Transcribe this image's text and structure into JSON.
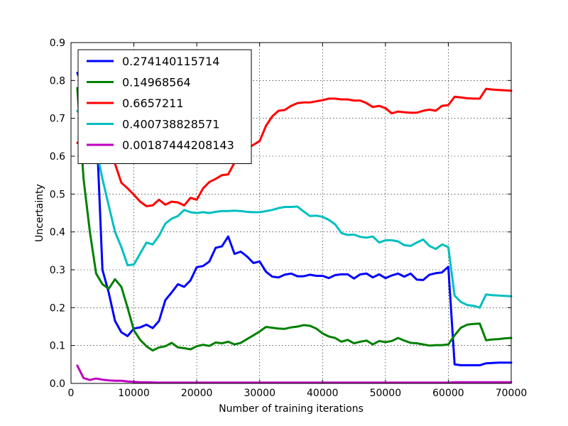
{
  "chart_data": {
    "type": "line",
    "title": "",
    "xlabel": "Number of training iterations",
    "ylabel": "Uncertainty",
    "xlim": [
      0,
      70000
    ],
    "ylim": [
      0.0,
      0.9
    ],
    "grid": true,
    "legend_position": "top-left",
    "x_ticks": [
      0,
      10000,
      20000,
      30000,
      40000,
      50000,
      60000,
      70000
    ],
    "x_tick_labels": [
      "0",
      "10000",
      "20000",
      "30000",
      "40000",
      "50000",
      "60000",
      "70000"
    ],
    "y_ticks": [
      0.0,
      0.1,
      0.2,
      0.3,
      0.4,
      0.5,
      0.6,
      0.7,
      0.8,
      0.9
    ],
    "y_tick_labels": [
      "0.0",
      "0.1",
      "0.2",
      "0.3",
      "0.4",
      "0.5",
      "0.6",
      "0.7",
      "0.8",
      "0.9"
    ],
    "series": [
      {
        "name": "0.274140115714",
        "color": "#0000ff",
        "points": [
          [
            1000,
            0.82
          ],
          [
            2000,
            0.78
          ],
          [
            3000,
            0.74
          ],
          [
            4000,
            0.7
          ],
          [
            5000,
            0.3
          ],
          [
            6000,
            0.24
          ],
          [
            7000,
            0.165
          ],
          [
            8000,
            0.135
          ],
          [
            9000,
            0.125
          ],
          [
            10000,
            0.145
          ],
          [
            11000,
            0.148
          ],
          [
            12000,
            0.155
          ],
          [
            13000,
            0.146
          ],
          [
            14000,
            0.165
          ],
          [
            15000,
            0.22
          ],
          [
            16000,
            0.24
          ],
          [
            17000,
            0.262
          ],
          [
            18000,
            0.255
          ],
          [
            19000,
            0.272
          ],
          [
            20000,
            0.307
          ],
          [
            21000,
            0.31
          ],
          [
            22000,
            0.322
          ],
          [
            23000,
            0.358
          ],
          [
            24000,
            0.362
          ],
          [
            25000,
            0.388
          ],
          [
            26000,
            0.342
          ],
          [
            27000,
            0.348
          ],
          [
            28000,
            0.335
          ],
          [
            29000,
            0.318
          ],
          [
            30000,
            0.322
          ],
          [
            31000,
            0.295
          ],
          [
            32000,
            0.282
          ],
          [
            33000,
            0.28
          ],
          [
            34000,
            0.287
          ],
          [
            35000,
            0.29
          ],
          [
            36000,
            0.283
          ],
          [
            37000,
            0.283
          ],
          [
            38000,
            0.287
          ],
          [
            39000,
            0.284
          ],
          [
            40000,
            0.284
          ],
          [
            41000,
            0.278
          ],
          [
            42000,
            0.286
          ],
          [
            43000,
            0.288
          ],
          [
            44000,
            0.288
          ],
          [
            45000,
            0.277
          ],
          [
            46000,
            0.288
          ],
          [
            47000,
            0.29
          ],
          [
            48000,
            0.28
          ],
          [
            49000,
            0.288
          ],
          [
            50000,
            0.278
          ],
          [
            51000,
            0.285
          ],
          [
            52000,
            0.29
          ],
          [
            53000,
            0.282
          ],
          [
            54000,
            0.29
          ],
          [
            55000,
            0.274
          ],
          [
            56000,
            0.273
          ],
          [
            57000,
            0.287
          ],
          [
            58000,
            0.291
          ],
          [
            59000,
            0.293
          ],
          [
            60000,
            0.308
          ],
          [
            61000,
            0.05
          ],
          [
            62000,
            0.048
          ],
          [
            63000,
            0.048
          ],
          [
            64000,
            0.048
          ],
          [
            65000,
            0.048
          ],
          [
            66000,
            0.053
          ],
          [
            67000,
            0.054
          ],
          [
            68000,
            0.055
          ],
          [
            69000,
            0.055
          ],
          [
            70000,
            0.055
          ]
        ]
      },
      {
        "name": "0.14968564",
        "color": "#008000",
        "points": [
          [
            1000,
            0.78
          ],
          [
            2000,
            0.54
          ],
          [
            3000,
            0.4
          ],
          [
            4000,
            0.29
          ],
          [
            5000,
            0.262
          ],
          [
            6000,
            0.25
          ],
          [
            7000,
            0.275
          ],
          [
            8000,
            0.255
          ],
          [
            9000,
            0.2
          ],
          [
            10000,
            0.14
          ],
          [
            11000,
            0.115
          ],
          [
            12000,
            0.098
          ],
          [
            13000,
            0.087
          ],
          [
            14000,
            0.095
          ],
          [
            15000,
            0.098
          ],
          [
            16000,
            0.107
          ],
          [
            17000,
            0.095
          ],
          [
            18000,
            0.093
          ],
          [
            19000,
            0.09
          ],
          [
            20000,
            0.098
          ],
          [
            21000,
            0.102
          ],
          [
            22000,
            0.099
          ],
          [
            23000,
            0.108
          ],
          [
            24000,
            0.106
          ],
          [
            25000,
            0.11
          ],
          [
            26000,
            0.103
          ],
          [
            27000,
            0.107
          ],
          [
            28000,
            0.117
          ],
          [
            29000,
            0.127
          ],
          [
            30000,
            0.137
          ],
          [
            31000,
            0.149
          ],
          [
            32000,
            0.147
          ],
          [
            33000,
            0.145
          ],
          [
            34000,
            0.144
          ],
          [
            35000,
            0.148
          ],
          [
            36000,
            0.15
          ],
          [
            37000,
            0.154
          ],
          [
            38000,
            0.152
          ],
          [
            39000,
            0.145
          ],
          [
            40000,
            0.132
          ],
          [
            41000,
            0.124
          ],
          [
            42000,
            0.12
          ],
          [
            43000,
            0.11
          ],
          [
            44000,
            0.115
          ],
          [
            45000,
            0.106
          ],
          [
            46000,
            0.11
          ],
          [
            47000,
            0.113
          ],
          [
            48000,
            0.103
          ],
          [
            49000,
            0.112
          ],
          [
            50000,
            0.109
          ],
          [
            51000,
            0.112
          ],
          [
            52000,
            0.12
          ],
          [
            53000,
            0.113
          ],
          [
            54000,
            0.107
          ],
          [
            55000,
            0.106
          ],
          [
            56000,
            0.103
          ],
          [
            57000,
            0.1
          ],
          [
            58000,
            0.101
          ],
          [
            59000,
            0.101
          ],
          [
            60000,
            0.103
          ],
          [
            61000,
            0.127
          ],
          [
            62000,
            0.147
          ],
          [
            63000,
            0.155
          ],
          [
            64000,
            0.157
          ],
          [
            65000,
            0.158
          ],
          [
            66000,
            0.114
          ],
          [
            67000,
            0.116
          ],
          [
            68000,
            0.117
          ],
          [
            69000,
            0.119
          ],
          [
            70000,
            0.12
          ]
        ]
      },
      {
        "name": "0.6657211",
        "color": "#ff0000",
        "points": [
          [
            1000,
            0.635
          ],
          [
            2000,
            0.65
          ],
          [
            3000,
            0.66
          ],
          [
            4000,
            0.665
          ],
          [
            5000,
            0.665
          ],
          [
            6000,
            0.62
          ],
          [
            7000,
            0.58
          ],
          [
            8000,
            0.53
          ],
          [
            9000,
            0.515
          ],
          [
            10000,
            0.498
          ],
          [
            11000,
            0.48
          ],
          [
            12000,
            0.468
          ],
          [
            13000,
            0.47
          ],
          [
            14000,
            0.485
          ],
          [
            15000,
            0.472
          ],
          [
            16000,
            0.48
          ],
          [
            17000,
            0.478
          ],
          [
            18000,
            0.47
          ],
          [
            19000,
            0.49
          ],
          [
            20000,
            0.485
          ],
          [
            21000,
            0.515
          ],
          [
            22000,
            0.532
          ],
          [
            23000,
            0.54
          ],
          [
            24000,
            0.55
          ],
          [
            25000,
            0.552
          ],
          [
            26000,
            0.583
          ],
          [
            27000,
            0.585
          ],
          [
            28000,
            0.62
          ],
          [
            29000,
            0.63
          ],
          [
            30000,
            0.64
          ],
          [
            31000,
            0.68
          ],
          [
            32000,
            0.705
          ],
          [
            33000,
            0.72
          ],
          [
            34000,
            0.722
          ],
          [
            35000,
            0.733
          ],
          [
            36000,
            0.74
          ],
          [
            37000,
            0.742
          ],
          [
            38000,
            0.742
          ],
          [
            39000,
            0.745
          ],
          [
            40000,
            0.748
          ],
          [
            41000,
            0.752
          ],
          [
            42000,
            0.752
          ],
          [
            43000,
            0.75
          ],
          [
            44000,
            0.75
          ],
          [
            45000,
            0.747
          ],
          [
            46000,
            0.747
          ],
          [
            47000,
            0.74
          ],
          [
            48000,
            0.73
          ],
          [
            49000,
            0.733
          ],
          [
            50000,
            0.727
          ],
          [
            51000,
            0.713
          ],
          [
            52000,
            0.718
          ],
          [
            53000,
            0.716
          ],
          [
            54000,
            0.715
          ],
          [
            55000,
            0.715
          ],
          [
            56000,
            0.72
          ],
          [
            57000,
            0.723
          ],
          [
            58000,
            0.72
          ],
          [
            59000,
            0.733
          ],
          [
            60000,
            0.735
          ],
          [
            61000,
            0.757
          ],
          [
            62000,
            0.755
          ],
          [
            63000,
            0.753
          ],
          [
            64000,
            0.752
          ],
          [
            65000,
            0.752
          ],
          [
            66000,
            0.778
          ],
          [
            67000,
            0.776
          ],
          [
            68000,
            0.775
          ],
          [
            69000,
            0.774
          ],
          [
            70000,
            0.773
          ]
        ]
      },
      {
        "name": "0.400738828571",
        "color": "#00bfbf",
        "points": [
          [
            1000,
            0.72
          ],
          [
            2000,
            0.7
          ],
          [
            3000,
            0.68
          ],
          [
            4000,
            0.62
          ],
          [
            5000,
            0.54
          ],
          [
            6000,
            0.47
          ],
          [
            7000,
            0.4
          ],
          [
            8000,
            0.36
          ],
          [
            9000,
            0.312
          ],
          [
            10000,
            0.314
          ],
          [
            11000,
            0.343
          ],
          [
            12000,
            0.372
          ],
          [
            13000,
            0.367
          ],
          [
            14000,
            0.39
          ],
          [
            15000,
            0.422
          ],
          [
            16000,
            0.435
          ],
          [
            17000,
            0.442
          ],
          [
            18000,
            0.458
          ],
          [
            19000,
            0.452
          ],
          [
            20000,
            0.45
          ],
          [
            21000,
            0.452
          ],
          [
            22000,
            0.45
          ],
          [
            23000,
            0.453
          ],
          [
            24000,
            0.455
          ],
          [
            25000,
            0.455
          ],
          [
            26000,
            0.456
          ],
          [
            27000,
            0.455
          ],
          [
            28000,
            0.453
          ],
          [
            29000,
            0.452
          ],
          [
            30000,
            0.452
          ],
          [
            31000,
            0.455
          ],
          [
            32000,
            0.458
          ],
          [
            33000,
            0.463
          ],
          [
            34000,
            0.466
          ],
          [
            35000,
            0.466
          ],
          [
            36000,
            0.467
          ],
          [
            37000,
            0.454
          ],
          [
            38000,
            0.442
          ],
          [
            39000,
            0.443
          ],
          [
            40000,
            0.44
          ],
          [
            41000,
            0.432
          ],
          [
            42000,
            0.42
          ],
          [
            43000,
            0.397
          ],
          [
            44000,
            0.392
          ],
          [
            45000,
            0.393
          ],
          [
            46000,
            0.387
          ],
          [
            47000,
            0.385
          ],
          [
            48000,
            0.388
          ],
          [
            49000,
            0.372
          ],
          [
            50000,
            0.378
          ],
          [
            51000,
            0.378
          ],
          [
            52000,
            0.375
          ],
          [
            53000,
            0.365
          ],
          [
            54000,
            0.363
          ],
          [
            55000,
            0.372
          ],
          [
            56000,
            0.38
          ],
          [
            57000,
            0.363
          ],
          [
            58000,
            0.355
          ],
          [
            59000,
            0.367
          ],
          [
            60000,
            0.36
          ],
          [
            61000,
            0.232
          ],
          [
            62000,
            0.215
          ],
          [
            63000,
            0.207
          ],
          [
            64000,
            0.205
          ],
          [
            65000,
            0.2
          ],
          [
            66000,
            0.235
          ],
          [
            67000,
            0.233
          ],
          [
            68000,
            0.232
          ],
          [
            69000,
            0.231
          ],
          [
            70000,
            0.23
          ]
        ]
      },
      {
        "name": "0.00187444208143",
        "color": "#bf00bf",
        "points": [
          [
            1000,
            0.047
          ],
          [
            2000,
            0.014
          ],
          [
            3000,
            0.009
          ],
          [
            4000,
            0.013
          ],
          [
            5000,
            0.01
          ],
          [
            6000,
            0.008
          ],
          [
            7000,
            0.007
          ],
          [
            8000,
            0.007
          ],
          [
            9000,
            0.005
          ],
          [
            10000,
            0.004
          ],
          [
            11000,
            0.003
          ],
          [
            12000,
            0.003
          ],
          [
            14000,
            0.002
          ],
          [
            16000,
            0.002
          ],
          [
            20000,
            0.002
          ],
          [
            30000,
            0.002
          ],
          [
            40000,
            0.002
          ],
          [
            50000,
            0.002
          ],
          [
            60000,
            0.002
          ],
          [
            61000,
            0.003
          ],
          [
            65000,
            0.003
          ],
          [
            70000,
            0.003
          ]
        ]
      }
    ]
  }
}
